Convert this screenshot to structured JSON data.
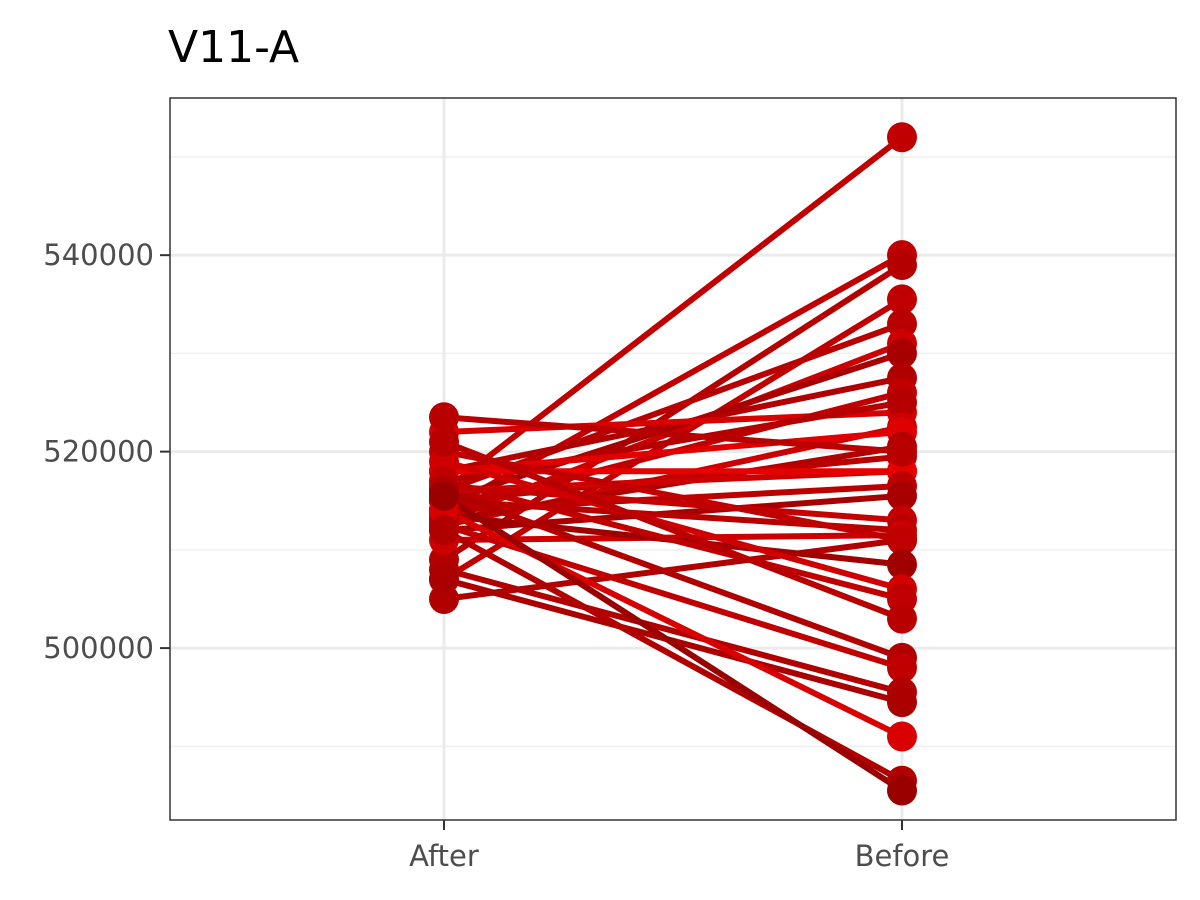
{
  "chart_data": {
    "type": "line",
    "title": "V11-A",
    "xlabel": "",
    "ylabel": "",
    "categories": [
      "After",
      "Before"
    ],
    "ylim": [
      482500,
      556000
    ],
    "y_ticks": [
      500000,
      520000,
      540000
    ],
    "y_tick_labels": [
      "500000",
      "520000",
      "540000"
    ],
    "grid": true,
    "legend": "none",
    "series": [
      {
        "values": [
          516000,
          552000
        ],
        "color": "#c00000"
      },
      {
        "values": [
          514000,
          540000
        ],
        "color": "#c00000"
      },
      {
        "values": [
          509000,
          539000
        ],
        "color": "#b50000"
      },
      {
        "values": [
          507000,
          535500
        ],
        "color": "#c00000"
      },
      {
        "values": [
          516000,
          533000
        ],
        "color": "#b80000"
      },
      {
        "values": [
          513000,
          531000
        ],
        "color": "#cc0000"
      },
      {
        "values": [
          515000,
          530000
        ],
        "color": "#a80000"
      },
      {
        "values": [
          518000,
          527500
        ],
        "color": "#b00000"
      },
      {
        "values": [
          522000,
          524000
        ],
        "color": "#d80000"
      },
      {
        "values": [
          514000,
          526000
        ],
        "color": "#c00000"
      },
      {
        "values": [
          517000,
          525000
        ],
        "color": "#b50000"
      },
      {
        "values": [
          512500,
          522500
        ],
        "color": "#cc0000"
      },
      {
        "values": [
          518000,
          522000
        ],
        "color": "#e00000"
      },
      {
        "values": [
          513000,
          520500
        ],
        "color": "#b00000"
      },
      {
        "values": [
          515000,
          519500
        ],
        "color": "#bb0000"
      },
      {
        "values": [
          516000,
          518000
        ],
        "color": "#d00000"
      },
      {
        "values": [
          518000,
          518000
        ],
        "color": "#e60000"
      },
      {
        "values": [
          514000,
          516500
        ],
        "color": "#bb0000"
      },
      {
        "values": [
          512000,
          515500
        ],
        "color": "#a80000"
      },
      {
        "values": [
          516500,
          513000
        ],
        "color": "#c40000"
      },
      {
        "values": [
          515000,
          512000
        ],
        "color": "#b80000"
      },
      {
        "values": [
          511000,
          511500
        ],
        "color": "#cc0000"
      },
      {
        "values": [
          505000,
          511000
        ],
        "color": "#b00000"
      },
      {
        "values": [
          520000,
          511000
        ],
        "color": "#c00000"
      },
      {
        "values": [
          513500,
          508500
        ],
        "color": "#a00000"
      },
      {
        "values": [
          519000,
          506000
        ],
        "color": "#d00000"
      },
      {
        "values": [
          517000,
          505000
        ],
        "color": "#c00000"
      },
      {
        "values": [
          521000,
          503000
        ],
        "color": "#b80000"
      },
      {
        "values": [
          516000,
          499000
        ],
        "color": "#b00000"
      },
      {
        "values": [
          512500,
          498000
        ],
        "color": "#c00000"
      },
      {
        "values": [
          508000,
          495500
        ],
        "color": "#b00000"
      },
      {
        "values": [
          507000,
          494500
        ],
        "color": "#aa0000"
      },
      {
        "values": [
          514000,
          491000
        ],
        "color": "#d80000"
      },
      {
        "values": [
          512000,
          486500
        ],
        "color": "#b00000"
      },
      {
        "values": [
          515500,
          485500
        ],
        "color": "#990000"
      },
      {
        "values": [
          523500,
          520000
        ],
        "color": "#b80000"
      }
    ]
  }
}
